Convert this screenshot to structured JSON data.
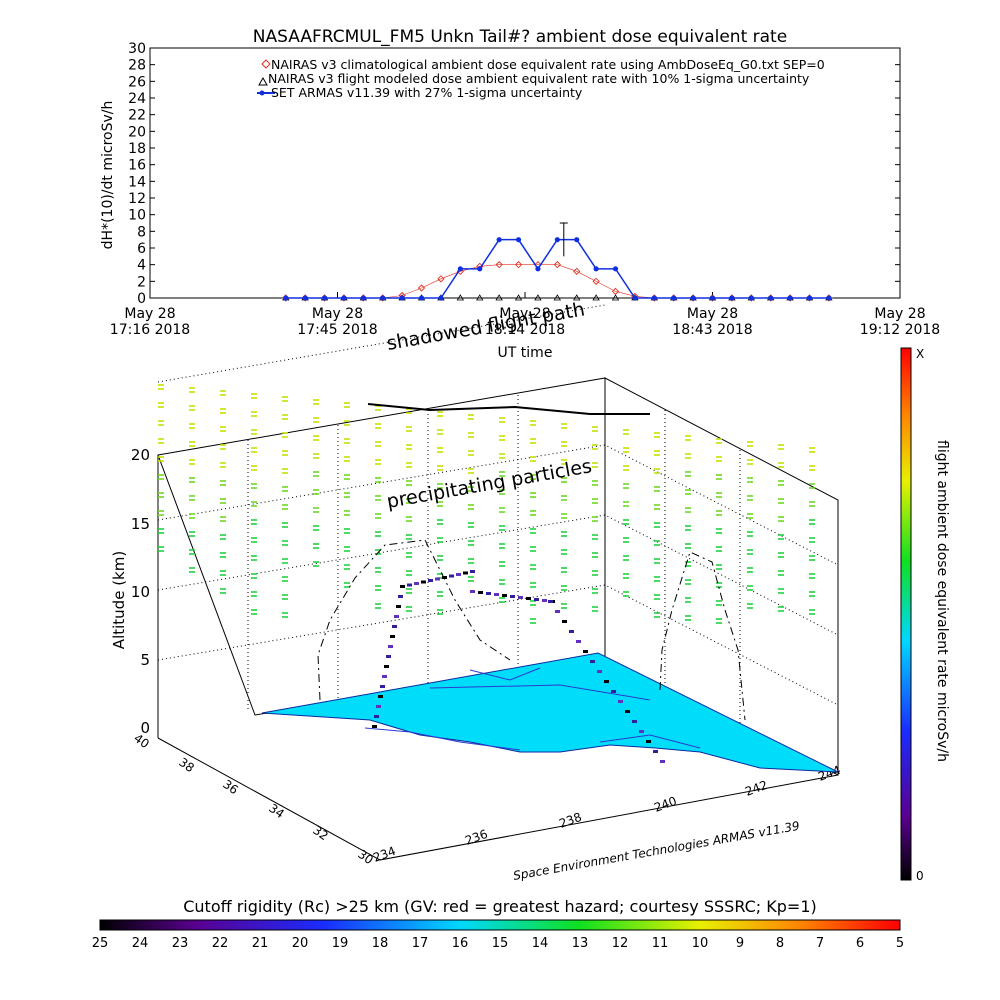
{
  "top_title": "NASAAFRCMUL_FM5 Unkn Tail#? ambient dose equivalent rate",
  "top_chart": {
    "ylabel": "dH*(10)/dt microSv/h",
    "xlabel": "UT time",
    "y_ticks": [
      "0",
      "2",
      "4",
      "6",
      "8",
      "10",
      "12",
      "14",
      "16",
      "18",
      "20",
      "22",
      "24",
      "26",
      "28",
      "30"
    ],
    "x_ticks": [
      {
        "line1": "May 28",
        "line2": "17:16 2018"
      },
      {
        "line1": "May 28",
        "line2": "17:45 2018"
      },
      {
        "line1": "May 28",
        "line2": "18:14 2018"
      },
      {
        "line1": "May 28",
        "line2": "18:43 2018"
      },
      {
        "line1": "May 28",
        "line2": "19:12 2018"
      }
    ],
    "legend": [
      "NAIRAS v3 climatological ambient dose equivalent rate using AmbDoseEq_G0.txt SEP=0",
      "NAIRAS v3 flight modeled dose ambient equivalent rate with 10% 1-sigma uncertainty",
      "SET ARMAS v11.39 with 27% 1-sigma uncertainty"
    ]
  },
  "annotations": {
    "shadowed_flight_path": "shadowed flight path",
    "precipitating_particles": "precipitating particles",
    "credit": "Space Environment Technologies ARMAS v11.39"
  },
  "scene": {
    "zlabel": "Altitude (km)",
    "z_ticks": [
      "0",
      "5",
      "10",
      "15",
      "20"
    ],
    "lat_ticks": [
      "30",
      "32",
      "34",
      "36",
      "38",
      "40"
    ],
    "lon_ticks": [
      "234",
      "236",
      "238",
      "240",
      "242",
      "244"
    ]
  },
  "right_colorbar": {
    "label": "flight ambient dose equivalent rate microSv/h",
    "top": "X",
    "bottom": "0"
  },
  "bottom_colorbar": {
    "title": "Cutoff rigidity (Rc) >25 km (GV: red = greatest hazard; courtesy SSSRC; Kp=1)",
    "ticks": [
      "25",
      "24",
      "23",
      "22",
      "21",
      "20",
      "19",
      "18",
      "17",
      "16",
      "15",
      "14",
      "13",
      "12",
      "11",
      "10",
      "9",
      "8",
      "7",
      "6",
      "5"
    ]
  },
  "chart_data": {
    "type": "line",
    "x": [
      "17:37",
      "17:40",
      "17:43",
      "17:46",
      "17:49",
      "17:52",
      "17:55",
      "17:58",
      "18:01",
      "18:04",
      "18:07",
      "18:10",
      "18:13",
      "18:16",
      "18:19",
      "18:22",
      "18:25",
      "18:28",
      "18:31",
      "18:34",
      "18:37",
      "18:40",
      "18:43",
      "18:46",
      "18:49",
      "18:52",
      "18:55",
      "18:58",
      "19:01"
    ],
    "series": [
      {
        "name": "NAIRAS v3 climatological",
        "values": [
          0,
          0,
          0,
          0,
          0,
          0,
          0.3,
          1.2,
          2.3,
          3.2,
          3.8,
          4.0,
          4.0,
          4.0,
          4.0,
          3.2,
          2.0,
          0.8,
          0.2,
          0,
          0,
          0,
          0,
          0,
          0,
          0,
          0,
          0,
          0
        ]
      },
      {
        "name": "NAIRAS v3 flight modeled",
        "values": [
          0,
          0,
          0,
          0,
          0,
          0,
          0,
          0,
          0,
          0,
          0,
          0,
          0,
          0,
          0,
          0,
          0,
          0,
          0,
          0,
          0,
          0,
          0,
          0,
          0,
          0,
          0,
          0,
          0
        ]
      },
      {
        "name": "SET ARMAS v11.39",
        "values": [
          0,
          0,
          0,
          0,
          0,
          0,
          0,
          0,
          0,
          3.5,
          3.5,
          7.0,
          7.0,
          3.5,
          7.0,
          7.0,
          3.5,
          3.5,
          0,
          0,
          0,
          0,
          0,
          0,
          0,
          0,
          0,
          0,
          0
        ]
      }
    ],
    "ylim": [
      0,
      30
    ]
  }
}
